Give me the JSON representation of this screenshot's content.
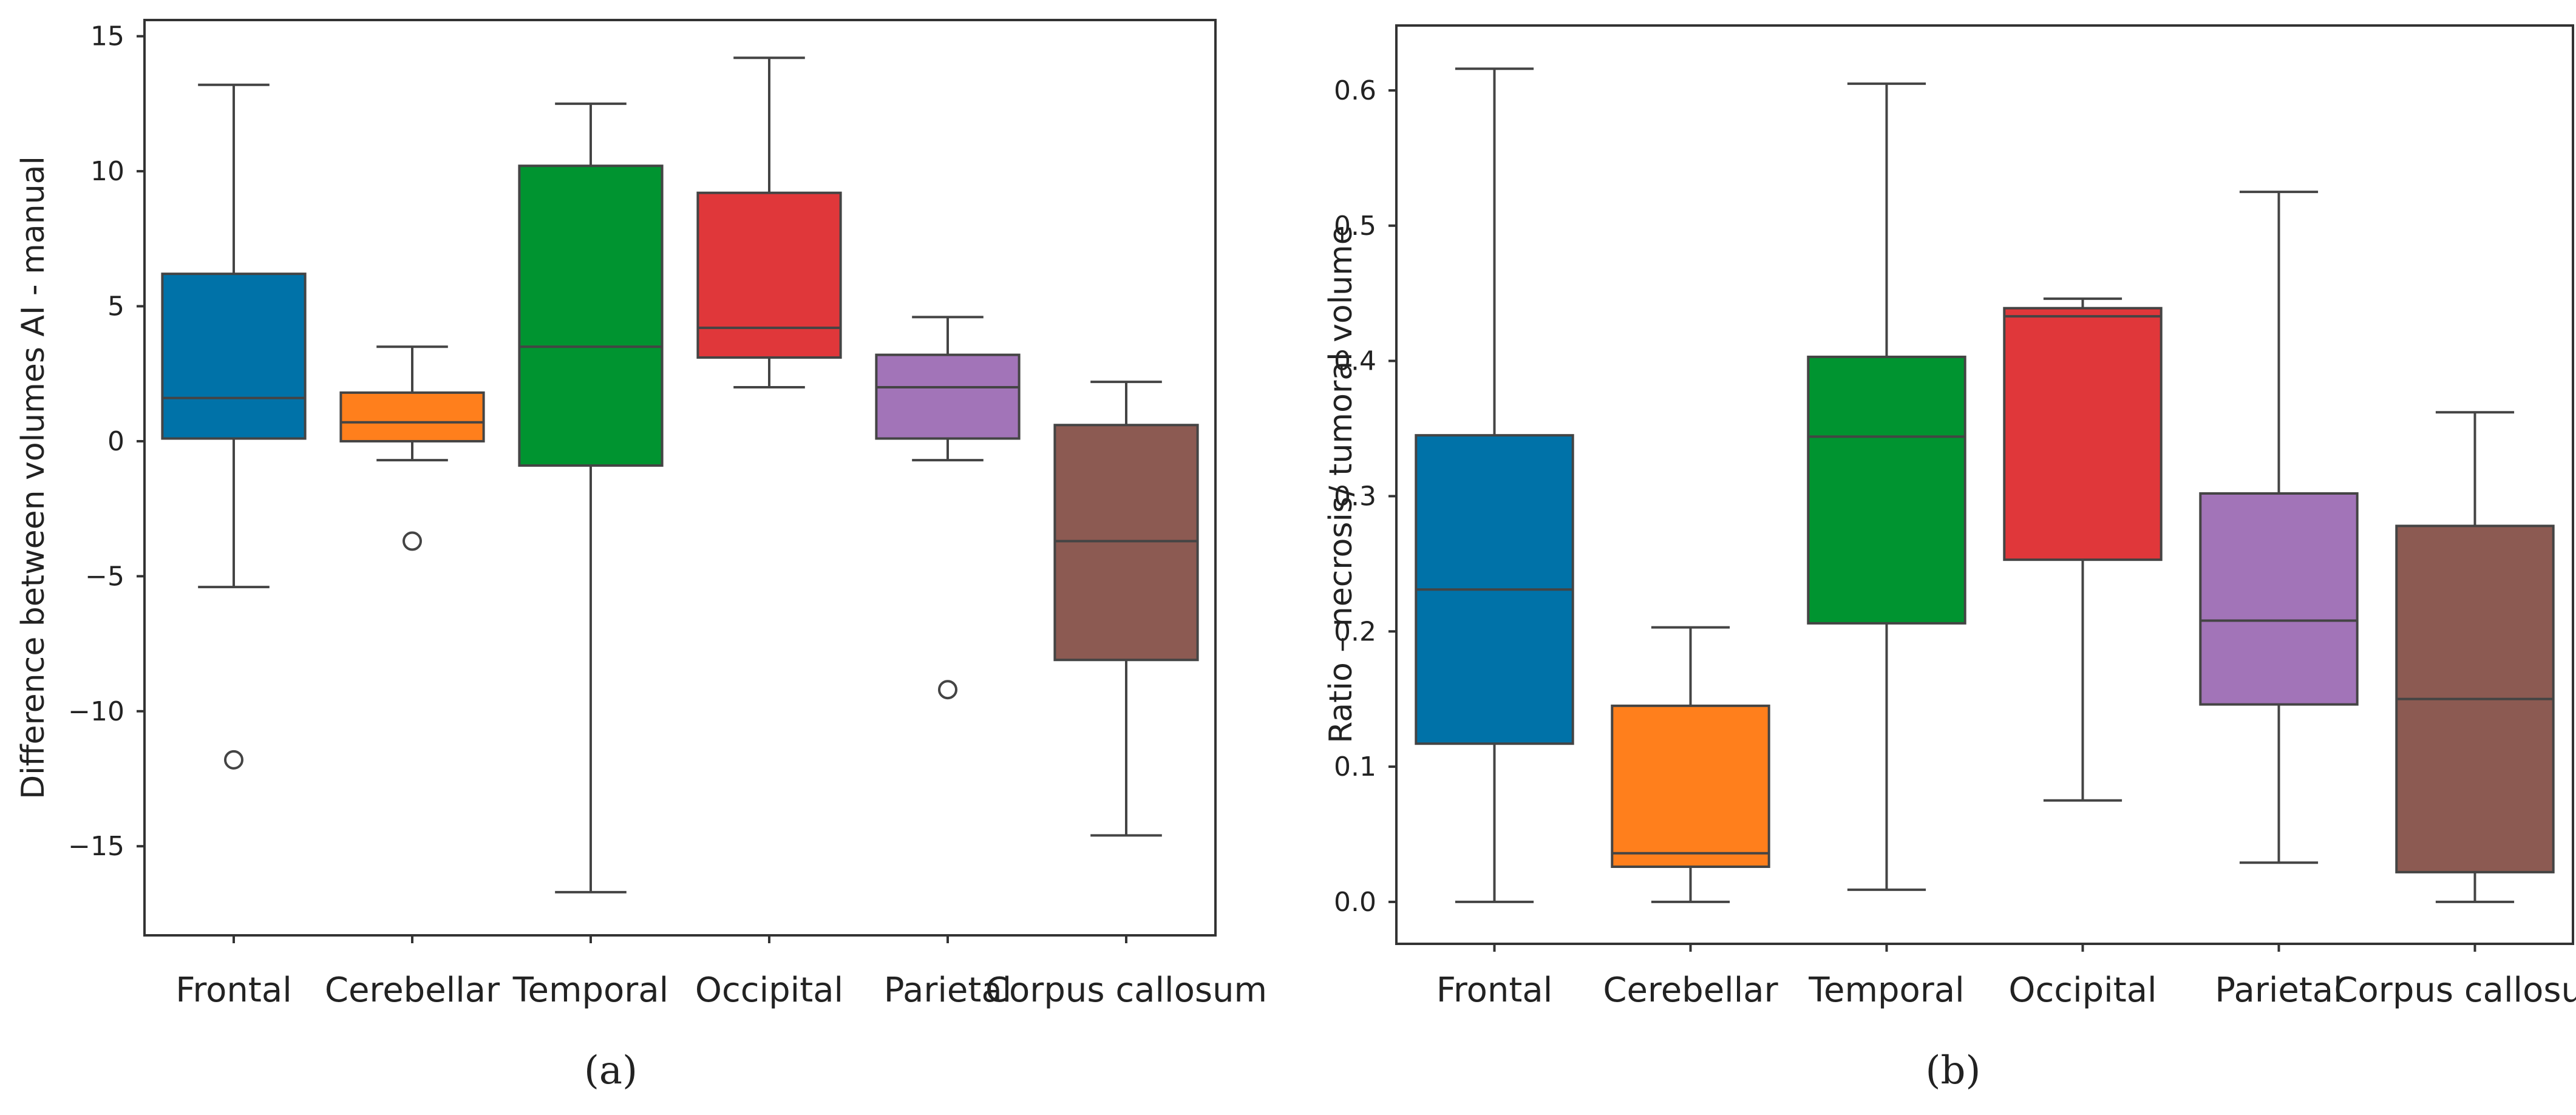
{
  "chart_data": [
    {
      "type": "box",
      "panel_label": "(a)",
      "title": "",
      "xlabel": "",
      "ylabel": "Difference between volumes AI - manual",
      "ylim": [
        -18.3,
        15.6
      ],
      "yticks": [
        -15,
        -10,
        -5,
        0,
        5,
        10,
        15
      ],
      "grid": false,
      "categories": [
        "Frontal",
        "Cerebellar",
        "Temporal",
        "Occipital",
        "Parietal",
        "Corpus callosum"
      ],
      "colors": [
        "#0072a8",
        "#ff7f1c",
        "#009430",
        "#e0373a",
        "#a274b8",
        "#8c5a52"
      ],
      "boxes": [
        {
          "label": "Frontal",
          "whisker_low": -5.4,
          "q1": 0.1,
          "median": 1.6,
          "q3": 6.2,
          "whisker_high": 13.2,
          "outliers": [
            -11.8
          ]
        },
        {
          "label": "Cerebellar",
          "whisker_low": -0.7,
          "q1": 0.0,
          "median": 0.7,
          "q3": 1.8,
          "whisker_high": 3.5,
          "outliers": [
            -3.7
          ]
        },
        {
          "label": "Temporal",
          "whisker_low": -16.7,
          "q1": -0.9,
          "median": 3.5,
          "q3": 10.2,
          "whisker_high": 12.5,
          "outliers": []
        },
        {
          "label": "Occipital",
          "whisker_low": 2.0,
          "q1": 3.1,
          "median": 4.2,
          "q3": 9.2,
          "whisker_high": 14.2,
          "outliers": []
        },
        {
          "label": "Parietal",
          "whisker_low": -0.7,
          "q1": 0.1,
          "median": 2.0,
          "q3": 3.2,
          "whisker_high": 4.6,
          "outliers": [
            -9.2
          ]
        },
        {
          "label": "Corpus callosum",
          "whisker_low": -14.6,
          "q1": -8.1,
          "median": -3.7,
          "q3": 0.6,
          "whisker_high": 2.2,
          "outliers": []
        }
      ]
    },
    {
      "type": "box",
      "panel_label": "(b)",
      "title": "",
      "xlabel": "",
      "ylabel": "Ratio – necrosis/ tumoral volume",
      "ylim": [
        -0.031,
        0.648
      ],
      "yticks": [
        0.0,
        0.1,
        0.2,
        0.3,
        0.4,
        0.5,
        0.6
      ],
      "ytick_labels": [
        "0.0",
        "0.1",
        "0.2",
        "0.3",
        "0.4",
        "0.5",
        "0.6"
      ],
      "grid": false,
      "categories": [
        "Frontal",
        "Cerebellar",
        "Temporal",
        "Occipital",
        "Parietal",
        "Corpus callosum"
      ],
      "colors": [
        "#0072a8",
        "#ff7f1c",
        "#009430",
        "#e0373a",
        "#a274b8",
        "#8c5a52"
      ],
      "boxes": [
        {
          "label": "Frontal",
          "whisker_low": 0.0,
          "q1": 0.117,
          "median": 0.231,
          "q3": 0.345,
          "whisker_high": 0.616,
          "outliers": []
        },
        {
          "label": "Cerebellar",
          "whisker_low": 0.0,
          "q1": 0.026,
          "median": 0.036,
          "q3": 0.145,
          "whisker_high": 0.203,
          "outliers": []
        },
        {
          "label": "Temporal",
          "whisker_low": 0.009,
          "q1": 0.206,
          "median": 0.344,
          "q3": 0.403,
          "whisker_high": 0.605,
          "outliers": []
        },
        {
          "label": "Occipital",
          "whisker_low": 0.075,
          "q1": 0.253,
          "median": 0.433,
          "q3": 0.439,
          "whisker_high": 0.446,
          "outliers": []
        },
        {
          "label": "Parietal",
          "whisker_low": 0.029,
          "q1": 0.146,
          "median": 0.208,
          "q3": 0.302,
          "whisker_high": 0.525,
          "outliers": []
        },
        {
          "label": "Corpus callosum",
          "whisker_low": 0.0,
          "q1": 0.022,
          "median": 0.15,
          "q3": 0.278,
          "whisker_high": 0.362,
          "outliers": []
        }
      ]
    }
  ]
}
